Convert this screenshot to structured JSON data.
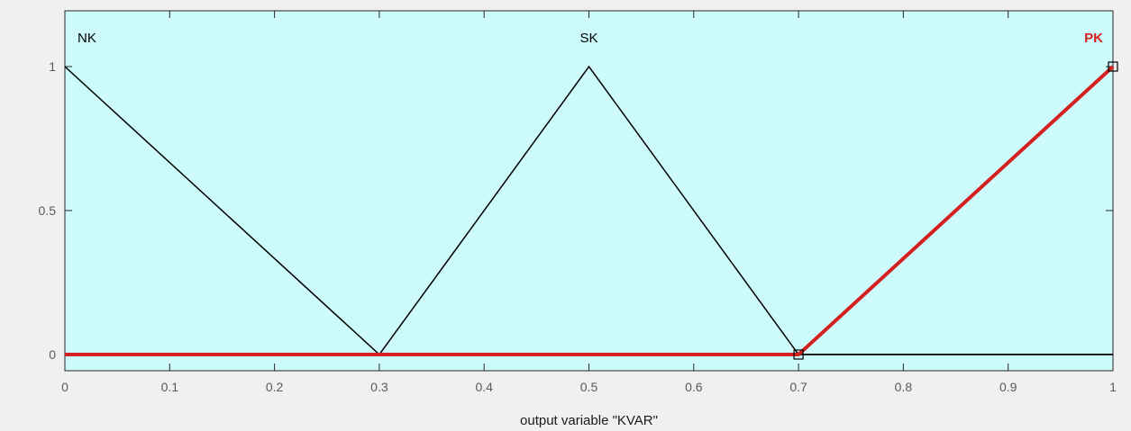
{
  "chart_data": {
    "type": "line",
    "xlabel": "output variable \"KVAR\"",
    "ylabel": "",
    "xlim": [
      0,
      1
    ],
    "ylim": [
      -0.1,
      1.2
    ],
    "x_ticks": [
      "0",
      "0.1",
      "0.2",
      "0.3",
      "0.4",
      "0.5",
      "0.6",
      "0.7",
      "0.8",
      "0.9",
      "1"
    ],
    "y_ticks": [
      "0",
      "0.5",
      "1"
    ],
    "grid": false,
    "background_color": "#cdfbfb",
    "selected_series": "PK",
    "selected_color": "#d42020",
    "default_color": "#000000",
    "series": [
      {
        "name": "NK",
        "x": [
          0,
          0.3,
          1
        ],
        "y": [
          1,
          0,
          0
        ]
      },
      {
        "name": "SK",
        "x": [
          0,
          0.3,
          0.5,
          0.7,
          1
        ],
        "y": [
          0,
          0,
          1,
          0,
          0
        ]
      },
      {
        "name": "PK",
        "x": [
          0,
          0.7,
          1
        ],
        "y": [
          0,
          0,
          1
        ]
      }
    ],
    "labels": [
      {
        "text": "NK",
        "x": 0,
        "y": 1.1,
        "align": "start"
      },
      {
        "text": "SK",
        "x": 0.5,
        "y": 1.1,
        "align": "middle"
      },
      {
        "text": "PK",
        "x": 1,
        "y": 1.1,
        "align": "end"
      }
    ]
  }
}
